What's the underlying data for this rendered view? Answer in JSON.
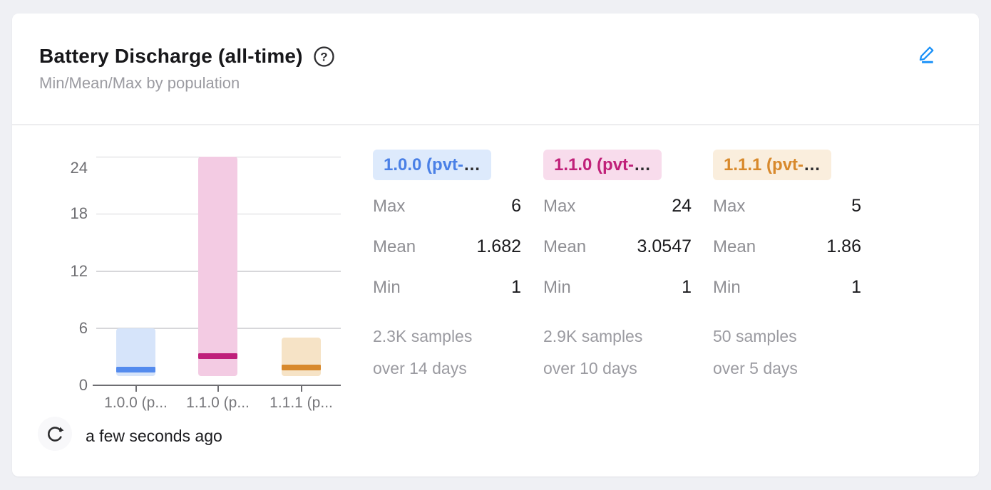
{
  "card": {
    "title": "Battery Discharge (all-time)",
    "subtitle": "Min/Mean/Max by population",
    "edit_accent_color": "#1890f8",
    "icon_color": "#2c2c2e"
  },
  "chart_data": {
    "type": "bar",
    "subtype": "min-mean-max-range",
    "title": "Battery Discharge (all-time)",
    "xlabel": "",
    "ylabel": "",
    "ylim": [
      0,
      24
    ],
    "yticks": [
      0,
      6,
      12,
      18,
      24
    ],
    "grid": true,
    "legend_position": "right-panels",
    "categories": [
      "1.0.0 (p...",
      "1.1.0 (p...",
      "1.1.1 (p..."
    ],
    "series": [
      {
        "name": "1.0.0 (pvt-…",
        "min": 1,
        "mean": 1.682,
        "max": 6,
        "fill": "#d6e4fa",
        "accent": "#548bee"
      },
      {
        "name": "1.1.0 (pvt-…",
        "min": 1,
        "mean": 3.0547,
        "max": 24,
        "fill": "#f3cbe3",
        "accent": "#bf1f7b"
      },
      {
        "name": "1.1.1 (pvt-…",
        "min": 1,
        "mean": 1.86,
        "max": 5,
        "fill": "#f6e3c6",
        "accent": "#d8892c"
      }
    ]
  },
  "populations": [
    {
      "badge": {
        "label": "1.0.0 (pvt-",
        "ellipsis": "…",
        "bg": "#ddeafc",
        "color": "#4a80e6"
      },
      "stats": [
        {
          "label": "Max",
          "value": "6"
        },
        {
          "label": "Mean",
          "value": "1.682"
        },
        {
          "label": "Min",
          "value": "1"
        }
      ],
      "samples_line1": "2.3K samples",
      "samples_line2": "over 14 days"
    },
    {
      "badge": {
        "label": "1.1.0 (pvt-",
        "ellipsis": "…",
        "bg": "#f8dcec",
        "color": "#c02079"
      },
      "stats": [
        {
          "label": "Max",
          "value": "24"
        },
        {
          "label": "Mean",
          "value": "3.0547"
        },
        {
          "label": "Min",
          "value": "1"
        }
      ],
      "samples_line1": "2.9K samples",
      "samples_line2": "over 10 days"
    },
    {
      "badge": {
        "label": "1.1.1 (pvt-",
        "ellipsis": "…",
        "bg": "#faeedd",
        "color": "#d8892c"
      },
      "stats": [
        {
          "label": "Max",
          "value": "5"
        },
        {
          "label": "Mean",
          "value": "1.86"
        },
        {
          "label": "Min",
          "value": "1"
        }
      ],
      "samples_line1": "50 samples",
      "samples_line2": "over 5 days"
    }
  ],
  "footer": {
    "last_updated": "a few seconds ago"
  }
}
